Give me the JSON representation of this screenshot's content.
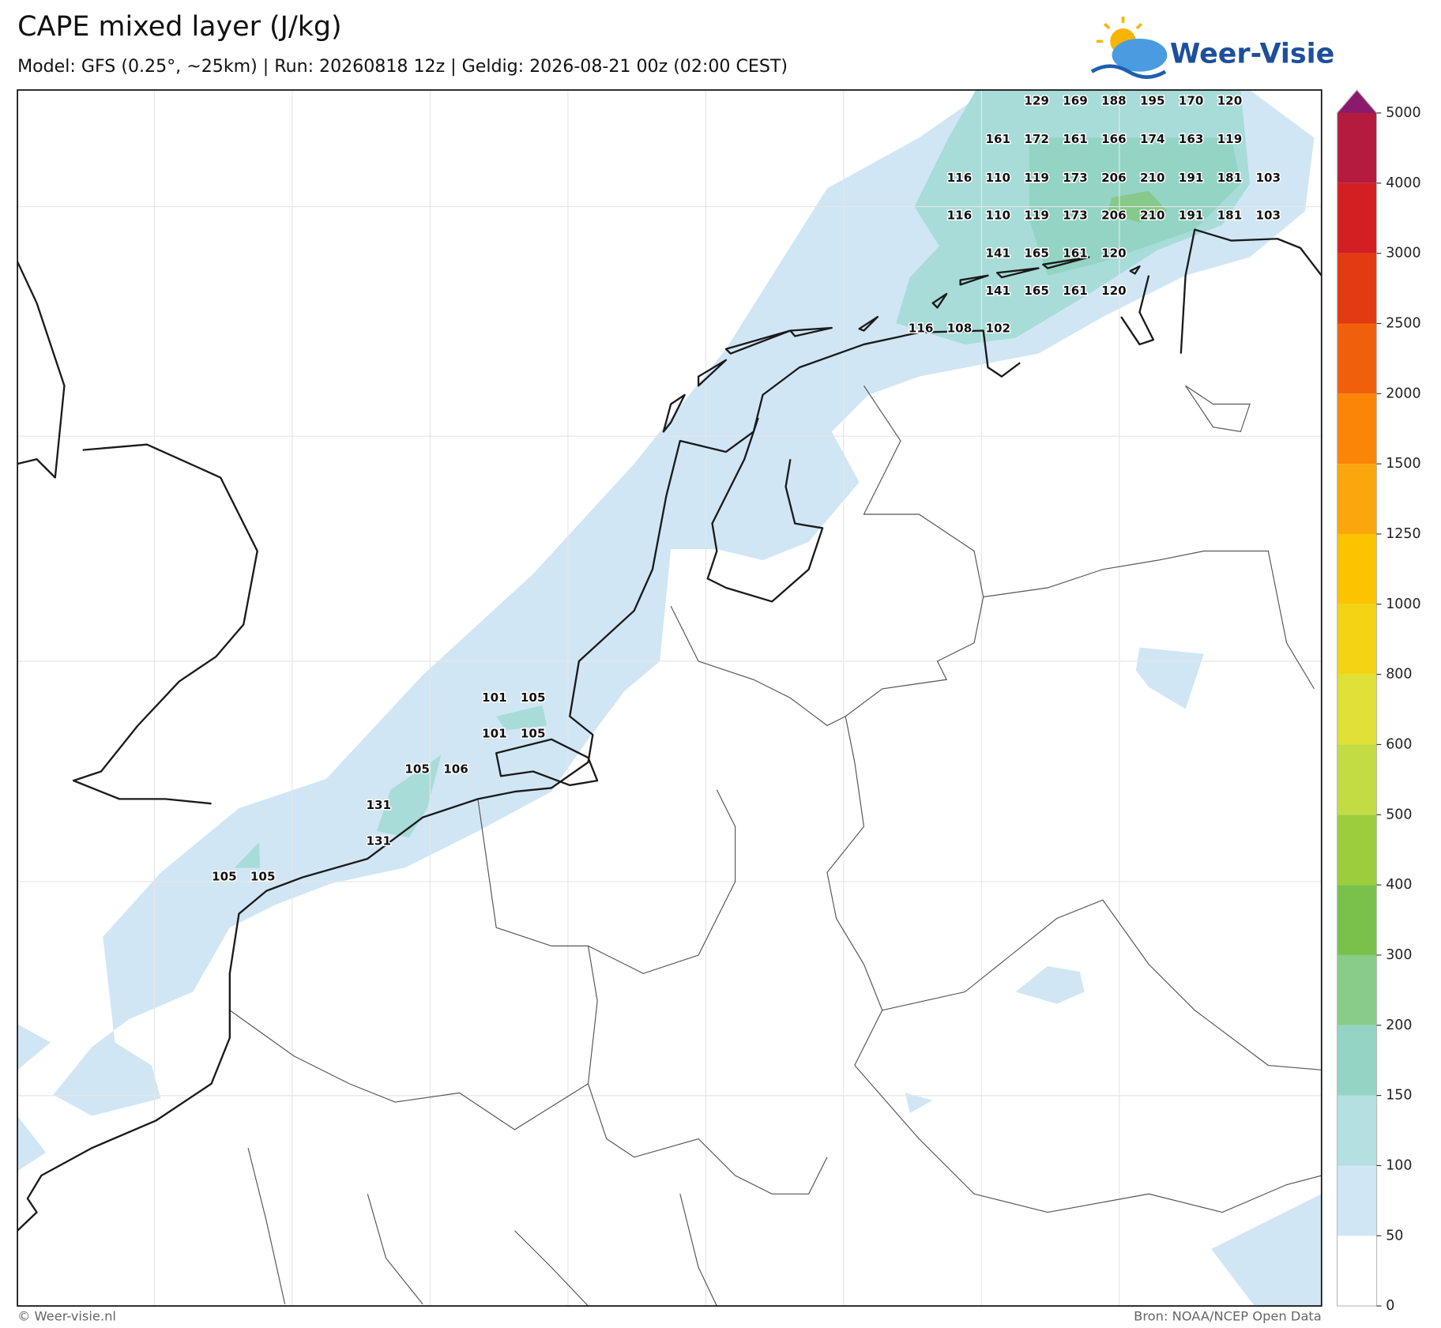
{
  "title": "CAPE mixed layer (J/kg)",
  "subtitle": "Model: GFS (0.25°, ~25km)  |  Run: 20260818 12z  |  Geldig: 2026-08-21 00z (02:00 CEST)",
  "logo": "Weer-Visie",
  "copyright": "© Weer-visie.nl",
  "source": "Bron: NOAA/NCEP Open Data",
  "map_labels": [
    [
      129,
      169,
      188,
      195,
      170,
      120
    ],
    [
      161,
      172,
      161,
      166,
      174,
      163,
      119
    ],
    [
      116,
      110,
      119,
      173,
      206,
      210,
      191,
      181,
      103
    ],
    [
      116,
      110,
      119,
      173,
      206,
      210,
      191,
      181,
      103
    ],
    [
      141,
      165,
      161,
      120
    ],
    [
      141,
      165,
      161,
      120
    ],
    [
      116,
      108,
      102
    ],
    [
      101,
      105
    ],
    [
      101,
      105
    ],
    [
      105,
      106
    ],
    [
      131
    ],
    [
      131
    ],
    [
      105,
      105
    ]
  ],
  "colorbar": {
    "ticks": [
      0,
      50,
      100,
      150,
      200,
      300,
      400,
      500,
      600,
      800,
      1000,
      1250,
      1500,
      2000,
      2500,
      3000,
      4000,
      5000
    ],
    "colors": [
      "#ffffff",
      "#d0e6f5",
      "#b3e0e0",
      "#93d4c4",
      "#88cc88",
      "#7ac14c",
      "#9ccd3c",
      "#c4dc44",
      "#dfe038",
      "#f2d414",
      "#fbc300",
      "#fca60e",
      "#fb8507",
      "#f0600c",
      "#e33a12",
      "#d41f22",
      "#b51b3e"
    ],
    "extend_color": "#8c1a6c"
  }
}
